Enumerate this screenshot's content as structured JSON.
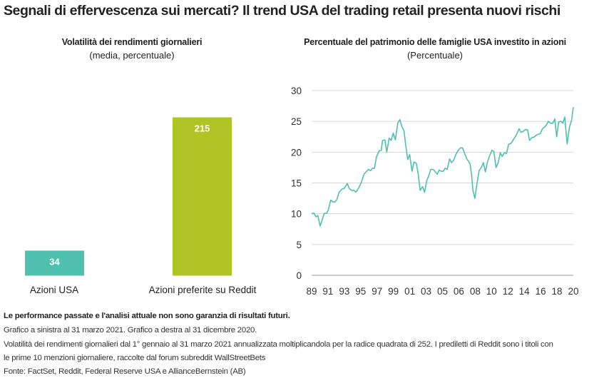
{
  "title": "Segnali di effervescenza sui mercati? Il trend USA del trading retail presenta nuovi rischi",
  "chart_data": [
    {
      "type": "bar",
      "title": "Volatilità dei rendimenti giornalieri",
      "subtitle": "(media, percentuale)",
      "categories": [
        "Azioni USA",
        "Azioni preferite su Reddit"
      ],
      "values": [
        34,
        215
      ],
      "colors": [
        "#4fc0ae",
        "#b1c426"
      ],
      "data_labels": [
        "34",
        "215"
      ],
      "grid": false
    },
    {
      "type": "line",
      "title": "Percentuale del patrimonio delle famiglie USA investito in azioni",
      "subtitle": "(Percentuale)",
      "color": "#4fc0ae",
      "xlim": [
        1989,
        2021
      ],
      "ylim": [
        0,
        30
      ],
      "yticks": [
        "0",
        "5",
        "10",
        "15",
        "20",
        "25",
        "30"
      ],
      "xtick_labels": [
        "89",
        "91",
        "93",
        "95",
        "97",
        "99",
        "01",
        "03",
        "05",
        "06",
        "08",
        "10",
        "12",
        "14",
        "16",
        "18",
        "20"
      ],
      "grid": true,
      "points": [
        [
          1989.0,
          10.0
        ],
        [
          1989.29,
          10.1
        ],
        [
          1989.52,
          9.5
        ],
        [
          1989.76,
          9.7
        ],
        [
          1990.05,
          8.0
        ],
        [
          1990.54,
          10.05
        ],
        [
          1990.83,
          10.05
        ],
        [
          1991.07,
          10.7
        ],
        [
          1991.33,
          12.2
        ],
        [
          1991.65,
          11.9
        ],
        [
          1991.85,
          11.9
        ],
        [
          1992.08,
          12.3
        ],
        [
          1992.37,
          13.5
        ],
        [
          1992.72,
          14.0
        ],
        [
          1992.96,
          14.1
        ],
        [
          1993.36,
          14.9
        ],
        [
          1993.6,
          14.1
        ],
        [
          1993.89,
          13.8
        ],
        [
          1994.18,
          13.8
        ],
        [
          1994.41,
          13.5
        ],
        [
          1994.76,
          14.2
        ],
        [
          1995.05,
          15.0
        ],
        [
          1995.4,
          16.4
        ],
        [
          1995.92,
          17.2
        ],
        [
          1996.21,
          17.0
        ],
        [
          1996.45,
          17.4
        ],
        [
          1996.68,
          17.4
        ],
        [
          1996.94,
          19.3
        ],
        [
          1997.26,
          20.2
        ],
        [
          1997.52,
          20.3
        ],
        [
          1997.67,
          21.9
        ],
        [
          1997.96,
          22.0
        ],
        [
          1998.19,
          20.0
        ],
        [
          1998.48,
          22.3
        ],
        [
          1998.72,
          21.9
        ],
        [
          1998.98,
          23.1
        ],
        [
          1999.24,
          22.0
        ],
        [
          1999.53,
          24.7
        ],
        [
          1999.79,
          25.3
        ],
        [
          2000.05,
          24.1
        ],
        [
          2000.29,
          23.5
        ],
        [
          2000.52,
          21.0
        ],
        [
          2000.75,
          18.8
        ],
        [
          2000.99,
          19.6
        ],
        [
          2001.28,
          16.9
        ],
        [
          2001.51,
          18.4
        ],
        [
          2001.8,
          18.2
        ],
        [
          2002.03,
          16.5
        ],
        [
          2002.27,
          13.8
        ],
        [
          2002.56,
          14.4
        ],
        [
          2002.82,
          13.5
        ],
        [
          2003.08,
          15.4
        ],
        [
          2003.31,
          16.1
        ],
        [
          2003.57,
          17.2
        ],
        [
          2003.84,
          17.2
        ],
        [
          2004.07,
          16.9
        ],
        [
          2004.36,
          16.4
        ],
        [
          2004.59,
          17.1
        ],
        [
          2004.83,
          16.9
        ],
        [
          2005.09,
          16.9
        ],
        [
          2005.32,
          17.4
        ],
        [
          2005.58,
          17.2
        ],
        [
          2005.87,
          18.9
        ],
        [
          2006.11,
          18.3
        ],
        [
          2006.37,
          18.7
        ],
        [
          2006.63,
          19.6
        ],
        [
          2006.92,
          20.3
        ],
        [
          2007.21,
          20.7
        ],
        [
          2007.44,
          20.7
        ],
        [
          2007.68,
          19.9
        ],
        [
          2007.97,
          18.9
        ],
        [
          2008.2,
          18.5
        ],
        [
          2008.37,
          18.1
        ],
        [
          2008.55,
          16.5
        ],
        [
          2008.72,
          13.8
        ],
        [
          2008.96,
          12.5
        ],
        [
          2009.19,
          14.7
        ],
        [
          2009.48,
          17.0
        ],
        [
          2009.74,
          17.5
        ],
        [
          2010.0,
          18.3
        ],
        [
          2010.24,
          16.8
        ],
        [
          2010.5,
          18.4
        ],
        [
          2010.76,
          19.4
        ],
        [
          2011.05,
          20.3
        ],
        [
          2011.28,
          20.1
        ],
        [
          2011.55,
          17.5
        ],
        [
          2011.81,
          18.3
        ],
        [
          2012.07,
          19.9
        ],
        [
          2012.3,
          19.3
        ],
        [
          2012.56,
          19.9
        ],
        [
          2012.83,
          19.8
        ],
        [
          2013.09,
          21.3
        ],
        [
          2013.38,
          21.4
        ],
        [
          2013.61,
          21.9
        ],
        [
          2013.9,
          22.5
        ],
        [
          2014.13,
          23.1
        ],
        [
          2014.37,
          23.8
        ],
        [
          2014.6,
          23.2
        ],
        [
          2014.89,
          23.4
        ],
        [
          2015.18,
          23.7
        ],
        [
          2015.41,
          23.6
        ],
        [
          2015.65,
          21.9
        ],
        [
          2015.94,
          22.4
        ],
        [
          2016.17,
          22.4
        ],
        [
          2016.4,
          22.7
        ],
        [
          2016.69,
          22.9
        ],
        [
          2016.96,
          23.0
        ],
        [
          2017.22,
          23.8
        ],
        [
          2017.51,
          24.1
        ],
        [
          2017.74,
          24.5
        ],
        [
          2017.92,
          25.0
        ],
        [
          2018.21,
          24.7
        ],
        [
          2018.5,
          24.7
        ],
        [
          2018.73,
          25.4
        ],
        [
          2018.96,
          22.5
        ],
        [
          2019.2,
          24.9
        ],
        [
          2019.49,
          25.0
        ],
        [
          2019.72,
          24.7
        ],
        [
          2019.95,
          25.7
        ],
        [
          2020.24,
          21.3
        ],
        [
          2020.53,
          24.1
        ],
        [
          2020.77,
          25.1
        ],
        [
          2021.0,
          27.3
        ]
      ]
    }
  ],
  "footer": {
    "disclaimer": "Le performance passate e l'analisi attuale non sono garanzia di risultati futuri.",
    "line1": "Grafico a sinistra al 31 marzo 2021. Grafico a destra al 31 dicembre 2020.",
    "line2": "Volatilità dei rendimenti giornalieri dal 1° gennaio al 31 marzo 2021 annualizzata moltiplicandola per la radice quadrata di 252. I prediletti di Reddit sono i titoli con",
    "line3": "le prime 10 menzioni giornaliere, raccolte dal forum subreddit WallStreetBets",
    "source": "Fonte: FactSet, Reddit, Federal Reserve USA e AllianceBernstein (AB)"
  }
}
